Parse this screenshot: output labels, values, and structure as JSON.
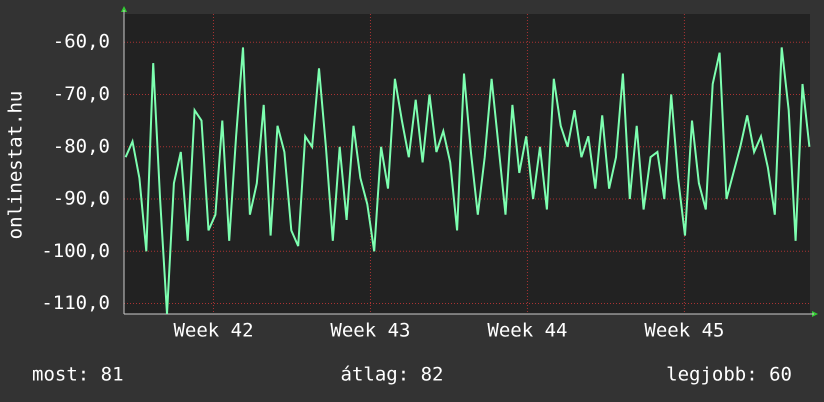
{
  "chart_data": {
    "type": "line",
    "ylabel": "onlinestat.hu",
    "xlim": [
      41.43,
      45.8
    ],
    "ylim": [
      -112,
      -54.6
    ],
    "xticks": [
      {
        "value": 42,
        "label": "Week 42"
      },
      {
        "value": 43,
        "label": "Week 43"
      },
      {
        "value": 44,
        "label": "Week 44"
      },
      {
        "value": 45,
        "label": "Week 45"
      }
    ],
    "yticks": [
      {
        "value": -110,
        "label": "-110,0"
      },
      {
        "value": -100,
        "label": "-100,0"
      },
      {
        "value": -90,
        "label": "-90,0"
      },
      {
        "value": -80,
        "label": "-80,0"
      },
      {
        "value": -70,
        "label": "-70,0"
      },
      {
        "value": -60,
        "label": "-60,0"
      }
    ],
    "grid": true,
    "x": [
      41.44,
      41.484,
      41.528,
      41.572,
      41.616,
      41.66,
      41.704,
      41.748,
      41.792,
      41.836,
      41.88,
      41.924,
      41.968,
      42.012,
      42.056,
      42.1,
      42.144,
      42.188,
      42.232,
      42.276,
      42.32,
      42.364,
      42.408,
      42.452,
      42.496,
      42.54,
      42.584,
      42.628,
      42.672,
      42.716,
      42.76,
      42.804,
      42.848,
      42.892,
      42.936,
      42.98,
      43.024,
      43.068,
      43.112,
      43.156,
      43.2,
      43.244,
      43.288,
      43.332,
      43.376,
      43.42,
      43.464,
      43.508,
      43.552,
      43.596,
      43.64,
      43.684,
      43.728,
      43.772,
      43.816,
      43.86,
      43.904,
      43.948,
      43.992,
      44.036,
      44.08,
      44.124,
      44.168,
      44.212,
      44.256,
      44.3,
      44.344,
      44.388,
      44.432,
      44.476,
      44.52,
      44.564,
      44.608,
      44.652,
      44.696,
      44.74,
      44.784,
      44.828,
      44.872,
      44.916,
      44.96,
      45.004,
      45.048,
      45.092,
      45.136,
      45.18,
      45.224,
      45.268,
      45.312,
      45.356,
      45.4,
      45.444,
      45.488,
      45.532,
      45.576,
      45.62,
      45.664,
      45.708,
      45.752,
      45.796
    ],
    "series": [
      {
        "color": "#7dffb0",
        "values": [
          -82,
          -79,
          -86,
          -100,
          -64,
          -90,
          -112,
          -87,
          -81,
          -98,
          -73,
          -75,
          -96,
          -93,
          -75,
          -98,
          -78,
          -61,
          -93,
          -87,
          -72,
          -97,
          -76,
          -81,
          -96,
          -99,
          -78,
          -80,
          -65,
          -80,
          -98,
          -80,
          -94,
          -76,
          -86,
          -91,
          -100,
          -80,
          -88,
          -67,
          -75,
          -82,
          -71,
          -83,
          -70,
          -81,
          -77,
          -83,
          -96,
          -66,
          -81,
          -93,
          -82,
          -67,
          -80,
          -93,
          -72,
          -85,
          -78,
          -90,
          -80,
          -92,
          -67,
          -76,
          -80,
          -73,
          -82,
          -78,
          -88,
          -74,
          -88,
          -82,
          -66,
          -90,
          -76,
          -92,
          -82,
          -81,
          -90,
          -70,
          -86,
          -97,
          -75,
          -87,
          -92,
          -68,
          -62,
          -90,
          -85,
          -80,
          -74,
          -81,
          -78,
          -84,
          -93,
          -61,
          -73,
          -98,
          -68,
          -80
        ]
      }
    ],
    "footer": [
      "most: 81",
      "átlag: 82",
      "legjobb: 60"
    ]
  }
}
